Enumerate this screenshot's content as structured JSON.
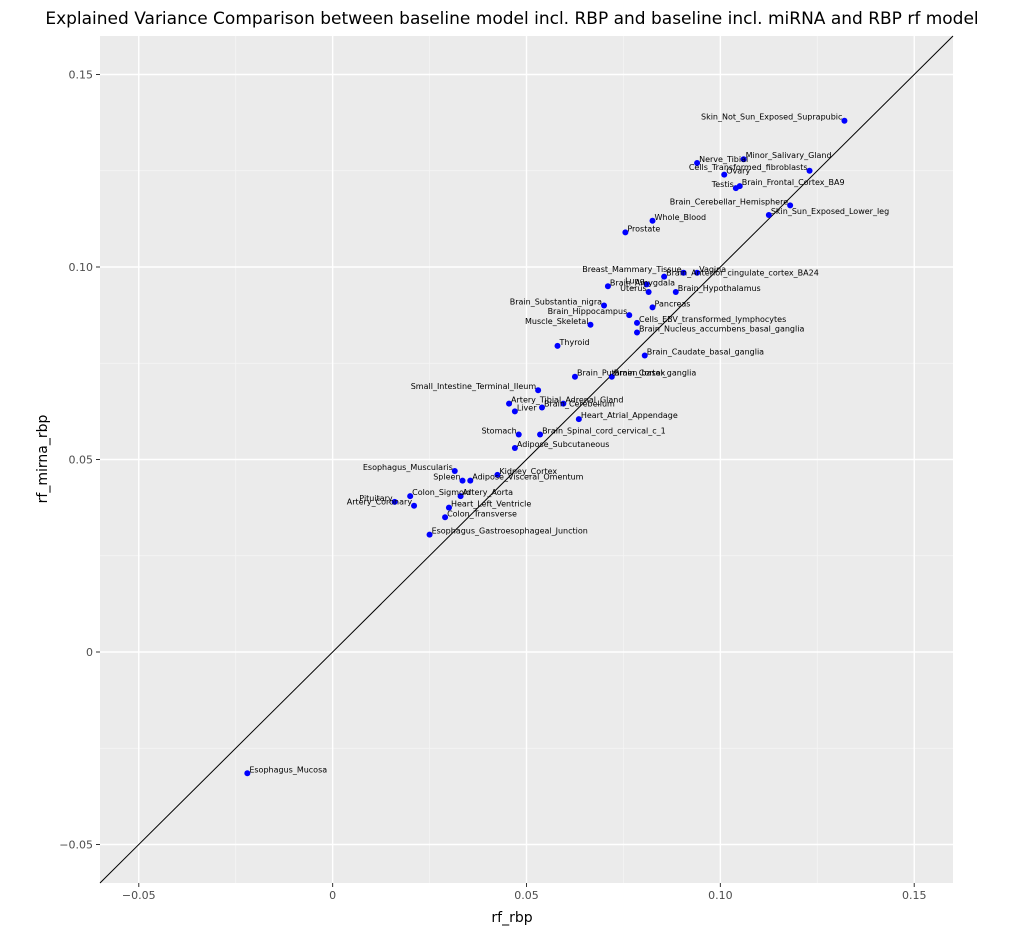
{
  "chart_data": {
    "type": "scatter",
    "title": "Explained Variance Comparison between baseline model incl. RBP and baseline incl. miRNA and RBP rf model",
    "xlabel": "rf_rbp",
    "ylabel": "rf_mirna_rbp",
    "xlim": [
      -0.06,
      0.16
    ],
    "ylim": [
      -0.06,
      0.16
    ],
    "x_ticks": [
      -0.05,
      0,
      0.05,
      0.1,
      0.15
    ],
    "x_tick_labels": [
      "−0.05",
      "0",
      "0.05",
      "0.10",
      "0.15"
    ],
    "y_ticks": [
      -0.05,
      0,
      0.05,
      0.1,
      0.15
    ],
    "y_tick_labels": [
      "−0.05",
      "0",
      "0.05",
      "0.10",
      "0.15"
    ],
    "grid": true,
    "background": "#ebebeb",
    "point_color": "#0000ff",
    "reference_line": "y = x",
    "points": [
      {
        "label": "Skin_Not_Sun_Exposed_Suprapubic",
        "x": 0.132,
        "y": 0.138,
        "anchor": "end"
      },
      {
        "label": "Minor_Salivary_Gland",
        "x": 0.106,
        "y": 0.128,
        "anchor": "start"
      },
      {
        "label": "Nerve_Tibial",
        "x": 0.094,
        "y": 0.127,
        "anchor": "start"
      },
      {
        "label": "Cells_Transformed_fibroblasts",
        "x": 0.123,
        "y": 0.125,
        "anchor": "end"
      },
      {
        "label": "Ovary",
        "x": 0.101,
        "y": 0.124,
        "anchor": "start"
      },
      {
        "label": "Brain_Frontal_Cortex_BA9",
        "x": 0.105,
        "y": 0.121,
        "anchor": "start"
      },
      {
        "label": "Testis",
        "x": 0.104,
        "y": 0.1205,
        "anchor": "end"
      },
      {
        "label": "Brain_Cerebellar_Hemisphere",
        "x": 0.118,
        "y": 0.116,
        "anchor": "end"
      },
      {
        "label": "Skin_Sun_Exposed_Lower_leg",
        "x": 0.1125,
        "y": 0.1135,
        "anchor": "start"
      },
      {
        "label": "Whole_Blood",
        "x": 0.0825,
        "y": 0.112,
        "anchor": "start"
      },
      {
        "label": "Prostate",
        "x": 0.0755,
        "y": 0.109,
        "anchor": "start"
      },
      {
        "label": "Vagina",
        "x": 0.094,
        "y": 0.0985,
        "anchor": "start"
      },
      {
        "label": "Breast_Mammary_Tissue",
        "x": 0.0905,
        "y": 0.0985,
        "anchor": "end"
      },
      {
        "label": "Brain_Anterior_cingulate_cortex_BA24",
        "x": 0.0855,
        "y": 0.0975,
        "anchor": "start"
      },
      {
        "label": "Lung",
        "x": 0.081,
        "y": 0.0955,
        "anchor": "end"
      },
      {
        "label": "Brain_Hypothalamus",
        "x": 0.0885,
        "y": 0.0935,
        "anchor": "start"
      },
      {
        "label": "Uterus",
        "x": 0.0815,
        "y": 0.0935,
        "anchor": "end"
      },
      {
        "label": "Brain_Amygdala",
        "x": 0.071,
        "y": 0.095,
        "anchor": "start"
      },
      {
        "label": "Pancreas",
        "x": 0.0825,
        "y": 0.0895,
        "anchor": "start"
      },
      {
        "label": "Brain_Substantia_nigra",
        "x": 0.07,
        "y": 0.09,
        "anchor": "end"
      },
      {
        "label": "Brain_Hippocampus",
        "x": 0.0765,
        "y": 0.0875,
        "anchor": "end"
      },
      {
        "label": "Cells_EBV_transformed_lymphocytes",
        "x": 0.0785,
        "y": 0.0855,
        "anchor": "start"
      },
      {
        "label": "Muscle_Skeletal",
        "x": 0.0665,
        "y": 0.085,
        "anchor": "end"
      },
      {
        "label": "Brain_Nucleus_accumbens_basal_ganglia",
        "x": 0.0785,
        "y": 0.083,
        "anchor": "start"
      },
      {
        "label": "Thyroid",
        "x": 0.058,
        "y": 0.0795,
        "anchor": "start"
      },
      {
        "label": "Brain_Caudate_basal_ganglia",
        "x": 0.0805,
        "y": 0.077,
        "anchor": "start"
      },
      {
        "label": "Brain_Putamen_basal_ganglia",
        "x": 0.0625,
        "y": 0.0715,
        "anchor": "start"
      },
      {
        "label": "Brain_Cortex",
        "x": 0.072,
        "y": 0.0715,
        "anchor": "start"
      },
      {
        "label": "Small_Intestine_Terminal_Ileum",
        "x": 0.053,
        "y": 0.068,
        "anchor": "end"
      },
      {
        "label": "Artery_Tibial",
        "x": 0.0455,
        "y": 0.0645,
        "anchor": "start"
      },
      {
        "label": "Adrenal_Gland",
        "x": 0.0595,
        "y": 0.0645,
        "anchor": "start"
      },
      {
        "label": "Liver",
        "x": 0.047,
        "y": 0.0625,
        "anchor": "start"
      },
      {
        "label": "Brain_Cerebellum",
        "x": 0.054,
        "y": 0.0635,
        "anchor": "start"
      },
      {
        "label": "Heart_Atrial_Appendage",
        "x": 0.0635,
        "y": 0.0605,
        "anchor": "start"
      },
      {
        "label": "Stomach",
        "x": 0.048,
        "y": 0.0565,
        "anchor": "end"
      },
      {
        "label": "Brain_Spinal_cord_cervical_c_1",
        "x": 0.0535,
        "y": 0.0565,
        "anchor": "start"
      },
      {
        "label": "Adipose_Subcutaneous",
        "x": 0.047,
        "y": 0.053,
        "anchor": "start"
      },
      {
        "label": "Esophagus_Muscularis",
        "x": 0.0315,
        "y": 0.047,
        "anchor": "end"
      },
      {
        "label": "Kidney_Cortex",
        "x": 0.0425,
        "y": 0.046,
        "anchor": "start"
      },
      {
        "label": "Spleen",
        "x": 0.0335,
        "y": 0.0445,
        "anchor": "end"
      },
      {
        "label": "Adipose_Visceral_Omentum",
        "x": 0.0355,
        "y": 0.0445,
        "anchor": "start"
      },
      {
        "label": "Colon_Sigmoid",
        "x": 0.02,
        "y": 0.0405,
        "anchor": "start"
      },
      {
        "label": "Pituitary",
        "x": 0.016,
        "y": 0.039,
        "anchor": "end"
      },
      {
        "label": "Artery_Aorta",
        "x": 0.033,
        "y": 0.0405,
        "anchor": "start"
      },
      {
        "label": "Artery_Coronary",
        "x": 0.021,
        "y": 0.038,
        "anchor": "end"
      },
      {
        "label": "Heart_Left_Ventricle",
        "x": 0.03,
        "y": 0.0375,
        "anchor": "start"
      },
      {
        "label": "Colon_Transverse",
        "x": 0.029,
        "y": 0.035,
        "anchor": "start"
      },
      {
        "label": "Esophagus_Gastroesophageal_Junction",
        "x": 0.025,
        "y": 0.0305,
        "anchor": "start"
      },
      {
        "label": "Esophagus_Mucosa",
        "x": -0.022,
        "y": -0.0315,
        "anchor": "start"
      }
    ]
  }
}
